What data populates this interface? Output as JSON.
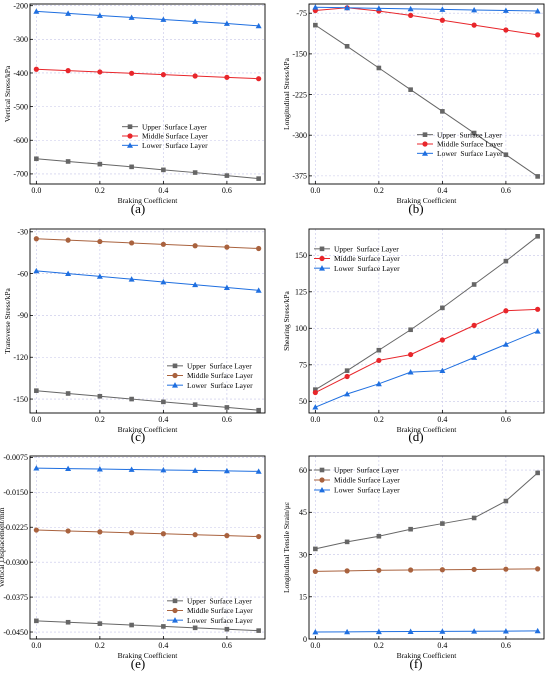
{
  "colors": {
    "upper": "#666666",
    "middle": "#e8262b",
    "lower": "#1f6fe0",
    "middle_brown": "#a9623e",
    "grid": "#c5c5e8",
    "axis": "#000000"
  },
  "chart_data": [
    {
      "id": "a",
      "panel_label": "(a)",
      "type": "line",
      "xlabel": "Braking Coefficient",
      "ylabel": "Vertical Stress/kPa",
      "xlim": [
        -0.02,
        0.72
      ],
      "ylim": [
        -730,
        -195
      ],
      "xticks": [
        0.0,
        0.2,
        0.4,
        0.6
      ],
      "xtick_labels": [
        "0.0",
        "0.2",
        "0.4",
        "0.6"
      ],
      "yticks": [
        -700,
        -600,
        -500,
        -400,
        -300,
        -200
      ],
      "ytick_labels": [
        "-700",
        "-600",
        "-500",
        "-400",
        "-300",
        "-200"
      ],
      "legend_position": "lower-center",
      "grid": true,
      "x": [
        0.0,
        0.1,
        0.2,
        0.3,
        0.4,
        0.5,
        0.6,
        0.7
      ],
      "series": [
        {
          "name": "Upper  Surface Layer",
          "color": "upper",
          "marker": "square",
          "values": [
            -655,
            -663,
            -671,
            -679,
            -688,
            -696,
            -705,
            -714
          ]
        },
        {
          "name": "Middle Surface Layer",
          "color": "middle",
          "marker": "circle",
          "values": [
            -389,
            -393,
            -397,
            -401,
            -405,
            -409,
            -413,
            -417
          ]
        },
        {
          "name": "Lower  Surface Layer",
          "color": "lower",
          "marker": "triangle",
          "values": [
            -217,
            -223,
            -229,
            -235,
            -241,
            -247,
            -253,
            -260
          ]
        }
      ]
    },
    {
      "id": "b",
      "panel_label": "(b)",
      "type": "line",
      "xlabel": "Braking Coefficient",
      "ylabel": "Longitudinal Stress/kPa",
      "xlim": [
        -0.02,
        0.72
      ],
      "ylim": [
        -390,
        -58
      ],
      "xticks": [
        0.0,
        0.2,
        0.4,
        0.6
      ],
      "xtick_labels": [
        "0.0",
        "0.2",
        "0.4",
        "0.6"
      ],
      "yticks": [
        -375,
        -300,
        -225,
        -150,
        -75
      ],
      "ytick_labels": [
        "-375",
        "-300",
        "-225",
        "-150",
        "-75"
      ],
      "legend_position": "center-right",
      "grid": true,
      "x": [
        0.0,
        0.1,
        0.2,
        0.3,
        0.4,
        0.5,
        0.6,
        0.7
      ],
      "series": [
        {
          "name": "Upper  Surface Layer",
          "color": "upper",
          "marker": "square",
          "values": [
            -97,
            -136,
            -176,
            -216,
            -256,
            -296,
            -336,
            -376
          ]
        },
        {
          "name": "Middle Surface Layer",
          "color": "middle",
          "marker": "circle",
          "values": [
            -70,
            -65,
            -71,
            -79,
            -88,
            -97,
            -106,
            -115
          ]
        },
        {
          "name": "Lower  Surface Layer",
          "color": "lower",
          "marker": "triangle",
          "values": [
            -64,
            -65,
            -66,
            -67,
            -68,
            -69,
            -70,
            -71
          ]
        }
      ]
    },
    {
      "id": "c",
      "panel_label": "(c)",
      "type": "line",
      "xlabel": "Braking Coefficient",
      "ylabel": "Transverse Stress/kPa",
      "xlim": [
        -0.02,
        0.72
      ],
      "ylim": [
        -160,
        -28
      ],
      "xticks": [
        0.0,
        0.2,
        0.4,
        0.6
      ],
      "xtick_labels": [
        "0.0",
        "0.2",
        "0.4",
        "0.6"
      ],
      "yticks": [
        -150,
        -120,
        -90,
        -60,
        -30
      ],
      "ytick_labels": [
        "-150",
        "-120",
        "-90",
        "-60",
        "-30"
      ],
      "legend_position": "lower-right",
      "grid": true,
      "x": [
        0.0,
        0.1,
        0.2,
        0.3,
        0.4,
        0.5,
        0.6,
        0.7
      ],
      "series": [
        {
          "name": "Upper  Surface Layer",
          "color": "upper",
          "marker": "square",
          "values": [
            -144,
            -146,
            -148,
            -150,
            -152,
            -154,
            -156,
            -158
          ]
        },
        {
          "name": "Middle Surface Layer",
          "color": "middle_brown",
          "marker": "circle",
          "values": [
            -35,
            -36,
            -37,
            -38,
            -39,
            -40,
            -41,
            -42
          ]
        },
        {
          "name": "Lower  Surface Layer",
          "color": "lower",
          "marker": "triangle",
          "values": [
            -58,
            -60,
            -62,
            -64,
            -66,
            -68,
            -70,
            -72
          ]
        }
      ]
    },
    {
      "id": "d",
      "panel_label": "(d)",
      "type": "line",
      "xlabel": "Braking Coefficient",
      "ylabel": "Shearing Stress/kPa",
      "xlim": [
        -0.02,
        0.72
      ],
      "ylim": [
        42,
        168
      ],
      "xticks": [
        0.0,
        0.2,
        0.4,
        0.6
      ],
      "xtick_labels": [
        "0.0",
        "0.2",
        "0.4",
        "0.6"
      ],
      "yticks": [
        50,
        75,
        100,
        125,
        150
      ],
      "ytick_labels": [
        "50",
        "75",
        "100",
        "125",
        "150"
      ],
      "legend_position": "top-left",
      "grid": true,
      "x": [
        0.0,
        0.1,
        0.2,
        0.3,
        0.4,
        0.5,
        0.6,
        0.7
      ],
      "series": [
        {
          "name": "Upper  Surface Layer",
          "color": "upper",
          "marker": "square",
          "values": [
            58,
            71,
            85,
            99,
            114,
            130,
            146,
            163
          ]
        },
        {
          "name": "Middle Surface Layer",
          "color": "middle",
          "marker": "circle",
          "values": [
            56,
            67,
            78,
            82,
            92,
            102,
            112,
            113
          ]
        },
        {
          "name": "Lower  Surface Layer",
          "color": "lower",
          "marker": "triangle",
          "values": [
            46,
            55,
            62,
            70,
            71,
            80,
            89,
            98
          ]
        }
      ]
    },
    {
      "id": "e",
      "panel_label": "(e)",
      "type": "line",
      "xlabel": "Braking Coefficient",
      "ylabel": "Vertical Displacement/mm",
      "xlim": [
        -0.02,
        0.72
      ],
      "ylim": [
        -0.0465,
        -0.0072
      ],
      "xticks": [
        0.0,
        0.2,
        0.4,
        0.6
      ],
      "xtick_labels": [
        "0.0",
        "0.2",
        "0.4",
        "0.6"
      ],
      "yticks": [
        -0.045,
        -0.0375,
        -0.03,
        -0.0225,
        -0.015,
        -0.0075
      ],
      "ytick_labels": [
        "-0.0450",
        "-0.0375",
        "-0.0300",
        "-0.0225",
        "-0.0150",
        "-0.0075"
      ],
      "legend_position": "lower-right",
      "grid": true,
      "x": [
        0.0,
        0.1,
        0.2,
        0.3,
        0.4,
        0.5,
        0.6,
        0.7
      ],
      "series": [
        {
          "name": "Upper  Surface Layer",
          "color": "upper",
          "marker": "square",
          "values": [
            -0.0426,
            -0.0429,
            -0.0432,
            -0.0435,
            -0.0438,
            -0.0441,
            -0.0444,
            -0.0447
          ]
        },
        {
          "name": "Middle Surface Layer",
          "color": "middle_brown",
          "marker": "circle",
          "values": [
            -0.0231,
            -0.0233,
            -0.0235,
            -0.0237,
            -0.0239,
            -0.0241,
            -0.0243,
            -0.0245
          ]
        },
        {
          "name": "Lower  Surface Layer",
          "color": "lower",
          "marker": "triangle",
          "values": [
            -0.0098,
            -0.0099,
            -0.01,
            -0.0101,
            -0.0102,
            -0.0103,
            -0.0104,
            -0.0105
          ]
        }
      ]
    },
    {
      "id": "f",
      "panel_label": "(f)",
      "type": "line",
      "xlabel": "Braking Coefficient",
      "ylabel": "Longitudinal Tensile Strain/με",
      "xlim": [
        -0.02,
        0.72
      ],
      "ylim": [
        0,
        65
      ],
      "xticks": [
        0.0,
        0.2,
        0.4,
        0.6
      ],
      "xtick_labels": [
        "0.0",
        "0.2",
        "0.4",
        "0.6"
      ],
      "yticks": [
        0,
        15,
        30,
        45,
        60
      ],
      "ytick_labels": [
        "0",
        "15",
        "30",
        "45",
        "60"
      ],
      "legend_position": "top-left",
      "grid": true,
      "x": [
        0.0,
        0.1,
        0.2,
        0.3,
        0.4,
        0.5,
        0.6,
        0.7
      ],
      "series": [
        {
          "name": "Upper  Surface Layer",
          "color": "upper",
          "marker": "square",
          "values": [
            32,
            34.5,
            36.5,
            39,
            41,
            43,
            49,
            59
          ]
        },
        {
          "name": "Middle Surface Layer",
          "color": "middle_brown",
          "marker": "circle",
          "values": [
            24,
            24.2,
            24.4,
            24.5,
            24.6,
            24.7,
            24.8,
            24.9
          ]
        },
        {
          "name": "Lower  Surface Layer",
          "color": "lower",
          "marker": "triangle",
          "values": [
            2.5,
            2.55,
            2.6,
            2.65,
            2.7,
            2.75,
            2.8,
            2.9
          ]
        }
      ]
    }
  ]
}
